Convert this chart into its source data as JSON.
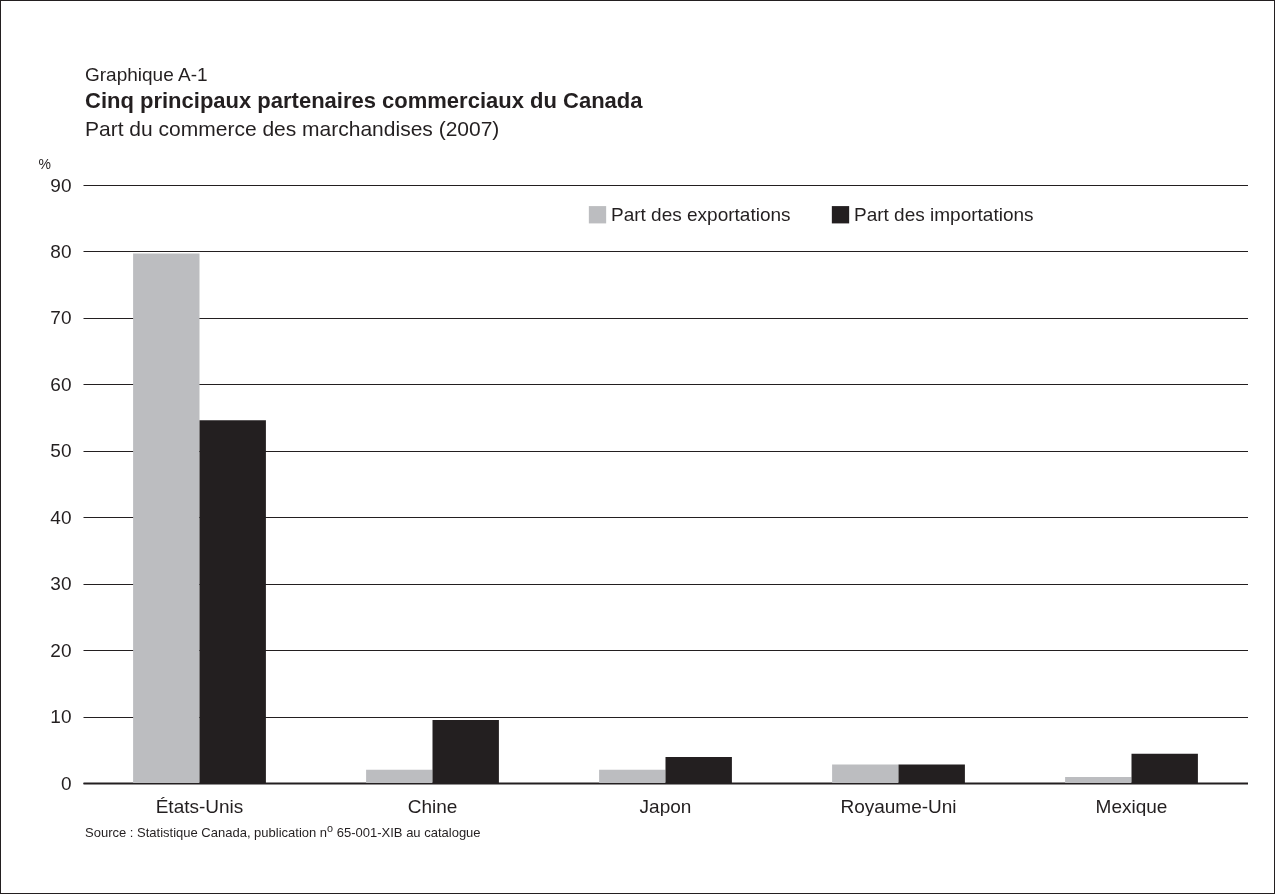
{
  "chart_data": {
    "type": "bar",
    "title": "Cinq principaux partenaires commerciaux du Canada",
    "subtitle": "Part du commerce des marchandises (2007)",
    "ylabel": "%",
    "annotations": [
      "Graphique A-1",
      "Source : Statistique Canada, publication n$^{o}$ 65-001-XIB au catalogue"
    ],
    "categories": [
      "États-Unis",
      "Chine",
      "Japon",
      "Royaume-Uni",
      "Mexique"
    ],
    "series": [
      {
        "name": "Part des exportations",
        "color": "#bcbdc0",
        "values": [
          79.7,
          2.0,
          2.0,
          2.8,
          0.9
        ]
      },
      {
        "name": "Part des importations",
        "color": "#231f20",
        "values": [
          54.6,
          9.5,
          3.9,
          2.8,
          4.4
        ]
      }
    ],
    "ylim": [
      0,
      90
    ],
    "yticks": [
      0,
      10,
      20,
      30,
      40,
      50,
      60,
      70,
      80,
      90
    ],
    "grid": "y",
    "legend": "top right"
  }
}
